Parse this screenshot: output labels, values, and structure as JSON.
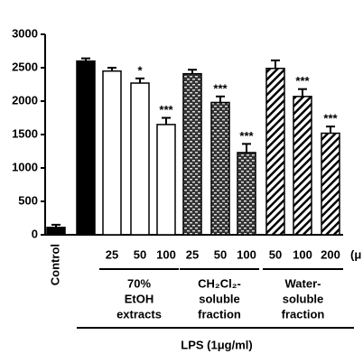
{
  "chart_data": {
    "type": "bar",
    "categories": [
      "Control",
      null,
      "25",
      "50",
      "100",
      "25",
      "50",
      "100",
      "50",
      "100",
      "200"
    ],
    "values": [
      110,
      2600,
      2450,
      2270,
      1650,
      2410,
      1980,
      1230,
      2490,
      2070,
      1520
    ],
    "errors": [
      40,
      40,
      50,
      70,
      100,
      60,
      90,
      130,
      120,
      110,
      100
    ],
    "significance": [
      null,
      null,
      null,
      "*",
      "***",
      null,
      "***",
      "***",
      null,
      "***",
      "***"
    ],
    "fills": [
      "black",
      "black",
      "white",
      "white",
      "white",
      "checker",
      "checker",
      "checker",
      "hatch",
      "hatch",
      "hatch"
    ],
    "groups": [
      {
        "lines": [
          "70%",
          "EtOH",
          "extracts"
        ]
      },
      {
        "lines": [
          "CH₂Cl₂-",
          "soluble",
          "fraction"
        ]
      },
      {
        "lines": [
          "Water-",
          "soluble",
          "fraction"
        ]
      }
    ],
    "unit_label": "(μ",
    "xlabel": "LPS (1μg/ml)",
    "ylim": [
      0,
      3000
    ],
    "yticks": [
      0,
      500,
      1000,
      1500,
      2000,
      2500,
      3000
    ]
  }
}
